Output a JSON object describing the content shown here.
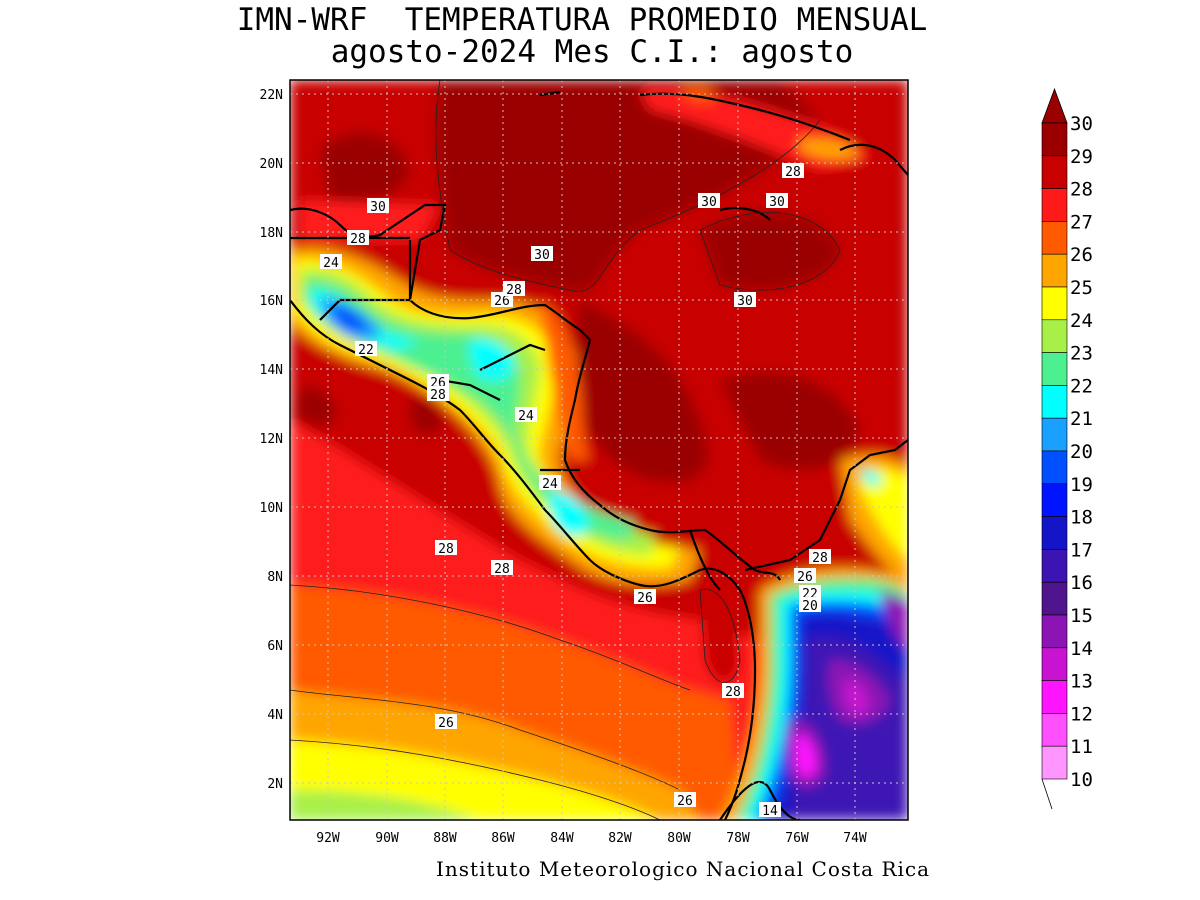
{
  "title": {
    "line1": "IMN-WRF  TEMPERATURA PROMEDIO MENSUAL",
    "line2": "agosto-2024 Mes C.I.: agosto"
  },
  "footer": "Instituto Meteorologico Nacional Costa Rica",
  "axes": {
    "lat_ticks": [
      "22N",
      "20N",
      "18N",
      "16N",
      "14N",
      "12N",
      "10N",
      "8N",
      "6N",
      "4N",
      "2N"
    ],
    "lon_ticks": [
      "92W",
      "90W",
      "88W",
      "86W",
      "84W",
      "82W",
      "80W",
      "78W",
      "76W",
      "74W"
    ]
  },
  "colorbar": {
    "labels": [
      "30",
      "29",
      "28",
      "27",
      "26",
      "25",
      "24",
      "23",
      "22",
      "21",
      "20",
      "19",
      "18",
      "17",
      "16",
      "15",
      "14",
      "13",
      "12",
      "11",
      "10"
    ],
    "colors": [
      "#9b0000",
      "#c80000",
      "#ff1a1a",
      "#ff5a00",
      "#ffa500",
      "#ffff00",
      "#a8f048",
      "#4cf090",
      "#00ffff",
      "#1aa0ff",
      "#0050ff",
      "#0014ff",
      "#1414c8",
      "#3c14b4",
      "#50148c",
      "#8c14b4",
      "#c814d2",
      "#ff14ff",
      "#ff50ff",
      "#ff96ff"
    ]
  },
  "contour_labels": [
    {
      "text": "30"
    },
    {
      "text": "28"
    },
    {
      "text": "24"
    },
    {
      "text": "22"
    },
    {
      "text": "26"
    },
    {
      "text": "28"
    },
    {
      "text": "30"
    },
    {
      "text": "28"
    },
    {
      "text": "26"
    },
    {
      "text": "30"
    },
    {
      "text": "30"
    },
    {
      "text": "30"
    },
    {
      "text": "28"
    },
    {
      "text": "24"
    },
    {
      "text": "24"
    },
    {
      "text": "28"
    },
    {
      "text": "28"
    },
    {
      "text": "26"
    },
    {
      "text": "28"
    },
    {
      "text": "26"
    },
    {
      "text": "22"
    },
    {
      "text": "20"
    },
    {
      "text": "28"
    },
    {
      "text": "26"
    },
    {
      "text": "26"
    },
    {
      "text": "14"
    }
  ]
}
